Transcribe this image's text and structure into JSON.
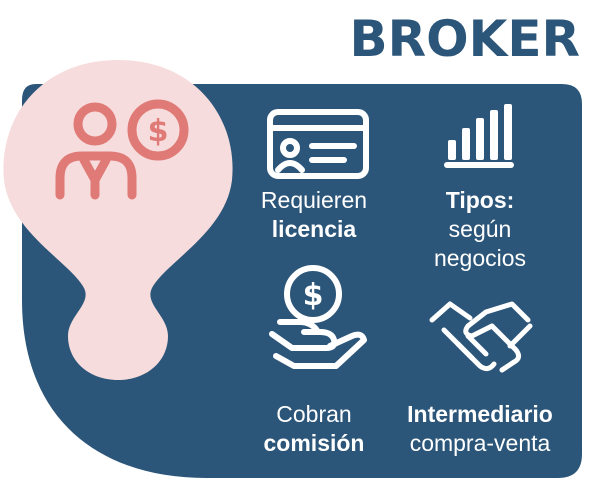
{
  "title": "BROKER",
  "colors": {
    "panel": "#2c5679",
    "pin": "#f6dcdc",
    "pin_icon": "#e07a77",
    "white": "#ffffff"
  },
  "items": [
    {
      "icon": "id-card-icon",
      "line1": "Requieren",
      "line2": "licencia",
      "bold_line": 2
    },
    {
      "icon": "bar-chart-icon",
      "line1": "Tipos:",
      "line2": "según",
      "line3": "negocios",
      "bold_line": 1
    },
    {
      "icon": "money-hand-icon",
      "line1": "Cobran",
      "line2": "comisión",
      "bold_line": 2
    },
    {
      "icon": "handshake-icon",
      "line1": "Intermediario",
      "line2": "compra-venta",
      "bold_line": 1
    }
  ],
  "pin_icon": "user-dollar-icon"
}
